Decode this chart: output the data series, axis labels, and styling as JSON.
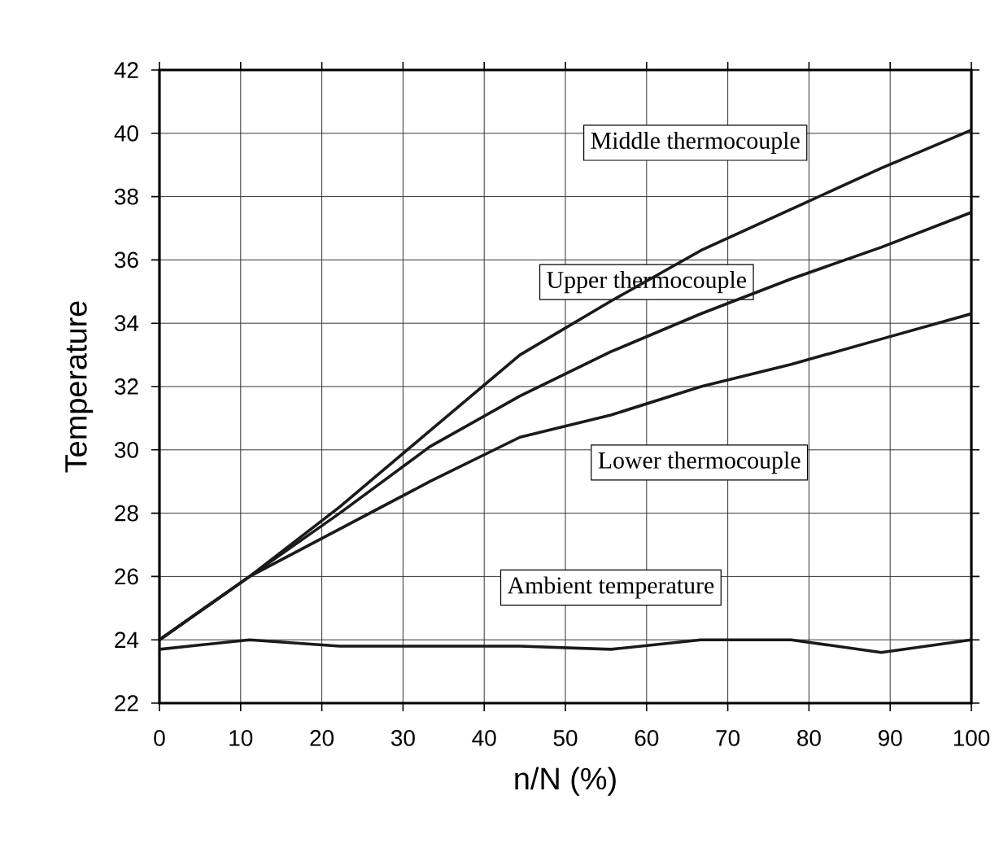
{
  "chart_data": {
    "type": "line",
    "xlabel": "n/N (%)",
    "ylabel": "Temperature",
    "x": [
      0,
      11.1,
      22.2,
      33.3,
      44.4,
      55.6,
      66.7,
      77.8,
      88.9,
      100
    ],
    "series": [
      {
        "name": "Middle thermocouple",
        "color": "#1a1a1a",
        "values": [
          24,
          26.0,
          28.2,
          30.6,
          33.0,
          34.7,
          36.3,
          37.6,
          38.9,
          40.1
        ]
      },
      {
        "name": "Upper thermocouple",
        "color": "#1a1a1a",
        "values": [
          24,
          26.0,
          28.0,
          30.1,
          31.7,
          33.1,
          34.3,
          35.4,
          36.4,
          37.5
        ]
      },
      {
        "name": "Lower thermocouple",
        "color": "#1a1a1a",
        "values": [
          24,
          26.0,
          27.5,
          29.0,
          30.4,
          31.1,
          32.0,
          32.7,
          33.5,
          34.3
        ]
      },
      {
        "name": "Ambient temperature",
        "color": "#1a1a1a",
        "values": [
          23.7,
          24.0,
          23.8,
          23.8,
          23.8,
          23.7,
          24.0,
          24.0,
          23.6,
          24.0
        ]
      }
    ],
    "xlim": [
      0,
      100
    ],
    "xticks": [
      0,
      10,
      20,
      30,
      40,
      50,
      60,
      70,
      80,
      90,
      100
    ],
    "ylim": [
      22,
      42
    ],
    "yticks": [
      22,
      24,
      26,
      28,
      30,
      32,
      34,
      36,
      38,
      40,
      42
    ],
    "grid": true,
    "legend": false,
    "marker": "none",
    "line_style": "solid"
  }
}
